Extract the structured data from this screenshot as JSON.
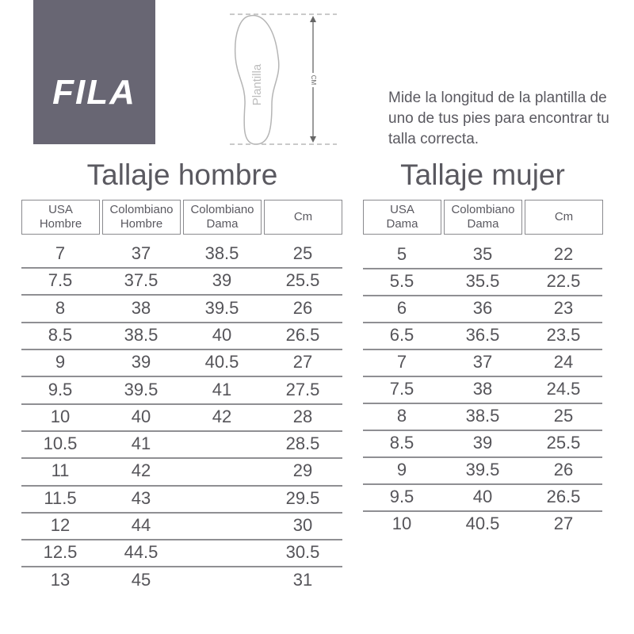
{
  "logo": {
    "text": "FILA",
    "bg_color": "#686673"
  },
  "diagram": {
    "insole_label": "Plantilla",
    "measure_label": "CM"
  },
  "instructions": "Mide la longitud de la plantilla de uno de tus pies para encontrar tu talla correcta.",
  "men": {
    "title": "Tallaje hombre",
    "headers": [
      "USA\nHombre",
      "Colombiano\nHombre",
      "Colombiano\nDama",
      "Cm"
    ],
    "rows": [
      [
        "7",
        "37",
        "38.5",
        "25"
      ],
      [
        "7.5",
        "37.5",
        "39",
        "25.5"
      ],
      [
        "8",
        "38",
        "39.5",
        "26"
      ],
      [
        "8.5",
        "38.5",
        "40",
        "26.5"
      ],
      [
        "9",
        "39",
        "40.5",
        "27"
      ],
      [
        "9.5",
        "39.5",
        "41",
        "27.5"
      ],
      [
        "10",
        "40",
        "42",
        "28"
      ],
      [
        "10.5",
        "41",
        "",
        "28.5"
      ],
      [
        "11",
        "42",
        "",
        "29"
      ],
      [
        "11.5",
        "43",
        "",
        "29.5"
      ],
      [
        "12",
        "44",
        "",
        "30"
      ],
      [
        "12.5",
        "44.5",
        "",
        "30.5"
      ],
      [
        "13",
        "45",
        "",
        "31"
      ]
    ]
  },
  "women": {
    "title": "Tallaje mujer",
    "headers": [
      "USA\nDama",
      "Colombiano\nDama",
      "Cm"
    ],
    "rows": [
      [
        "5",
        "35",
        "22"
      ],
      [
        "5.5",
        "35.5",
        "22.5"
      ],
      [
        "6",
        "36",
        "23"
      ],
      [
        "6.5",
        "36.5",
        "23.5"
      ],
      [
        "7",
        "37",
        "24"
      ],
      [
        "7.5",
        "38",
        "24.5"
      ],
      [
        "8",
        "38.5",
        "25"
      ],
      [
        "8.5",
        "39",
        "25.5"
      ],
      [
        "9",
        "39.5",
        "26"
      ],
      [
        "9.5",
        "40",
        "26.5"
      ],
      [
        "10",
        "40.5",
        "27"
      ]
    ]
  }
}
